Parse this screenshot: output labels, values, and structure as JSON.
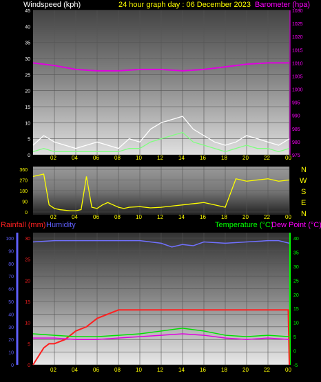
{
  "header": {
    "left_label": "Windspeed (kph)",
    "center_label": "24 hour graph day : 06 December 2023",
    "right_label": "Barometer (hpa)"
  },
  "bottom_header": {
    "rainfall_label": "Rainfall (mm)",
    "humidity_label": "Humidity",
    "temperature_label": "Temperature (°C)",
    "dewpoint_label": "Dew Point (°C)"
  },
  "x_ticks": [
    "02",
    "04",
    "06",
    "08",
    "10",
    "12",
    "14",
    "16",
    "18",
    "20",
    "22",
    "00"
  ],
  "compass_labels": [
    "N",
    "W",
    "S",
    "E",
    "N"
  ],
  "colors": {
    "wind_gust": "#ffffff",
    "wind_avg": "#80ff80",
    "barometer": "#e000e0",
    "direction": "#ffff00",
    "rainfall": "#ff2020",
    "humidity": "#7070ff",
    "temperature": "#00e000",
    "dewpoint": "#e000e0",
    "label_yellow": "#ffff00",
    "label_white": "#ffffff",
    "label_magenta": "#ff00ff",
    "label_red": "#ff2020",
    "label_blue": "#6060ff",
    "label_green": "#00ff00"
  },
  "chart_data": [
    {
      "type": "line",
      "panel": "wind",
      "x_range_hours": [
        0,
        24
      ],
      "y_left": {
        "label": "Windspeed (kph)",
        "ylim": [
          0,
          45
        ],
        "ticks": [
          0,
          5,
          10,
          15,
          20,
          25,
          30,
          35,
          40,
          45
        ]
      },
      "y_right": {
        "label": "Barometer (hpa)",
        "ylim": [
          975,
          1030
        ],
        "ticks": [
          975,
          980,
          985,
          990,
          995,
          1000,
          1005,
          1010,
          1015,
          1020,
          1025,
          1030
        ]
      },
      "series": [
        {
          "name": "Windspeed (kph)",
          "color": "#ffffff",
          "x": [
            0,
            1,
            2,
            3,
            4,
            5,
            6,
            7,
            8,
            9,
            10,
            11,
            12,
            13,
            14,
            15,
            16,
            17,
            18,
            19,
            20,
            21,
            22,
            23,
            24
          ],
          "y": [
            3,
            6,
            4,
            3,
            2,
            3,
            4,
            3,
            2,
            5,
            4,
            8,
            10,
            11,
            12,
            8,
            6,
            4,
            3,
            4,
            6,
            5,
            4,
            3,
            5
          ]
        },
        {
          "name": "Wind average",
          "color": "#80ff80",
          "x": [
            0,
            1,
            2,
            3,
            4,
            5,
            6,
            7,
            8,
            9,
            10,
            11,
            12,
            13,
            14,
            15,
            16,
            17,
            18,
            19,
            20,
            21,
            22,
            23,
            24
          ],
          "y": [
            1,
            2,
            1,
            1,
            1,
            1,
            1,
            1,
            1,
            2,
            2,
            4,
            5,
            6,
            7,
            4,
            3,
            2,
            1,
            2,
            3,
            2,
            2,
            1,
            2
          ]
        },
        {
          "name": "Barometer (hpa)",
          "color": "#e000e0",
          "x": [
            0,
            2,
            4,
            6,
            8,
            10,
            12,
            14,
            16,
            18,
            20,
            22,
            24
          ],
          "y": [
            1010,
            1009,
            1007.5,
            1007,
            1007,
            1007.5,
            1007.5,
            1007,
            1007.5,
            1008.5,
            1009.5,
            1010,
            1010
          ]
        }
      ]
    },
    {
      "type": "line",
      "panel": "wind direction",
      "x_range_hours": [
        0,
        24
      ],
      "y_left": {
        "ylim": [
          0,
          360
        ],
        "ticks": [
          0,
          90,
          180,
          270,
          360
        ]
      },
      "series": [
        {
          "name": "Wind direction",
          "color": "#ffff00",
          "x": [
            0,
            0.5,
            1,
            1.5,
            2,
            2.5,
            3,
            3.5,
            4,
            4.5,
            5,
            5.5,
            6,
            6.5,
            7,
            7.5,
            8,
            8.5,
            9,
            10,
            11,
            12,
            13,
            14,
            15,
            16,
            17,
            18,
            19,
            20,
            21,
            22,
            23,
            24
          ],
          "y": [
            300,
            310,
            320,
            60,
            30,
            20,
            15,
            10,
            10,
            20,
            300,
            40,
            30,
            60,
            80,
            60,
            40,
            30,
            40,
            45,
            35,
            40,
            50,
            60,
            70,
            80,
            60,
            40,
            280,
            260,
            270,
            280,
            260,
            270
          ]
        }
      ]
    },
    {
      "type": "line",
      "panel": "rain / humidity / temperature",
      "x_range_hours": [
        0,
        24
      ],
      "y_left_humidity": {
        "label": "Humidity",
        "ylim": [
          0,
          100
        ],
        "ticks": [
          0,
          10,
          20,
          30,
          40,
          50,
          60,
          70,
          80,
          90,
          100
        ]
      },
      "y_left_rain": {
        "label": "Rainfall (mm)",
        "ylim": [
          0,
          30
        ],
        "ticks": [
          0,
          5,
          10,
          15,
          20,
          25,
          30
        ]
      },
      "y_right": {
        "label": "Temperature (°C)",
        "ylim": [
          -5,
          40
        ],
        "ticks": [
          -5,
          0,
          5,
          10,
          15,
          20,
          25,
          30,
          35,
          40
        ]
      },
      "series": [
        {
          "name": "Rainfall (mm)",
          "color": "#ff2020",
          "x": [
            0,
            1,
            1.5,
            2,
            3,
            4,
            5,
            6,
            7,
            8,
            9,
            10,
            12,
            14,
            16,
            18,
            20,
            22,
            23.9,
            24
          ],
          "y": [
            0,
            4,
            5,
            5,
            6,
            8,
            9,
            11,
            12,
            13,
            13,
            13,
            13,
            13,
            13,
            13,
            13,
            13,
            13,
            0
          ]
        },
        {
          "name": "Humidity",
          "color": "#7070ff",
          "x": [
            0,
            2,
            4,
            6,
            8,
            10,
            12,
            13,
            14,
            15,
            16,
            18,
            20,
            22,
            23,
            24
          ],
          "y": [
            97,
            98,
            98,
            98,
            98,
            98,
            96,
            93,
            95,
            94,
            97,
            96,
            97,
            98,
            98,
            96
          ]
        },
        {
          "name": "Temperature (°C)",
          "color": "#00e000",
          "x": [
            0,
            2,
            4,
            6,
            8,
            10,
            12,
            14,
            16,
            18,
            20,
            22,
            24
          ],
          "y": [
            6,
            5.5,
            5,
            5,
            5.5,
            6,
            7,
            8,
            7,
            5.5,
            5,
            5.5,
            5
          ]
        },
        {
          "name": "Dew Point (°C)",
          "color": "#e000e0",
          "x": [
            0,
            2,
            4,
            6,
            8,
            10,
            12,
            14,
            16,
            18,
            20,
            22,
            24
          ],
          "y": [
            4.5,
            4.5,
            4,
            4,
            4.5,
            5,
            5.5,
            6,
            5.5,
            4.5,
            4,
            4.5,
            4
          ]
        }
      ]
    }
  ]
}
